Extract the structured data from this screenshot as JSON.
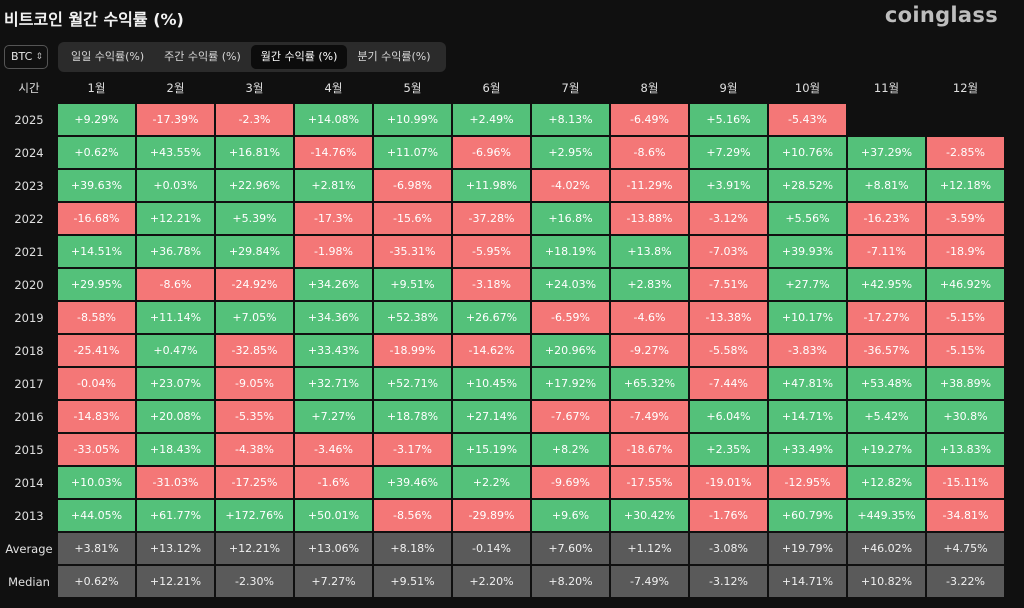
{
  "header": {
    "title": "비트코인 월간 수익률 (%)",
    "logo": "coinglass"
  },
  "toolbar": {
    "coin": "BTC",
    "tabs": [
      {
        "label": "일일 수익률(%)",
        "active": false
      },
      {
        "label": "주간 수익률 (%)",
        "active": false
      },
      {
        "label": "월간 수익률 (%)",
        "active": true
      },
      {
        "label": "분기 수익률(%)",
        "active": false
      }
    ]
  },
  "colors": {
    "positive": "#54c17a",
    "negative": "#f47777",
    "stat": "#5a5a5a",
    "background": "#101010"
  },
  "chart_data": {
    "type": "table",
    "corner_label": "시간",
    "columns": [
      "1월",
      "2월",
      "3월",
      "4월",
      "5월",
      "6월",
      "7월",
      "8월",
      "9월",
      "10월",
      "11월",
      "12월"
    ],
    "rows": [
      {
        "label": "2025",
        "values": [
          "+9.29%",
          "-17.39%",
          "-2.3%",
          "+14.08%",
          "+10.99%",
          "+2.49%",
          "+8.13%",
          "-6.49%",
          "+5.16%",
          "-5.43%",
          null,
          null
        ]
      },
      {
        "label": "2024",
        "values": [
          "+0.62%",
          "+43.55%",
          "+16.81%",
          "-14.76%",
          "+11.07%",
          "-6.96%",
          "+2.95%",
          "-8.6%",
          "+7.29%",
          "+10.76%",
          "+37.29%",
          "-2.85%"
        ]
      },
      {
        "label": "2023",
        "values": [
          "+39.63%",
          "+0.03%",
          "+22.96%",
          "+2.81%",
          "-6.98%",
          "+11.98%",
          "-4.02%",
          "-11.29%",
          "+3.91%",
          "+28.52%",
          "+8.81%",
          "+12.18%"
        ]
      },
      {
        "label": "2022",
        "values": [
          "-16.68%",
          "+12.21%",
          "+5.39%",
          "-17.3%",
          "-15.6%",
          "-37.28%",
          "+16.8%",
          "-13.88%",
          "-3.12%",
          "+5.56%",
          "-16.23%",
          "-3.59%"
        ]
      },
      {
        "label": "2021",
        "values": [
          "+14.51%",
          "+36.78%",
          "+29.84%",
          "-1.98%",
          "-35.31%",
          "-5.95%",
          "+18.19%",
          "+13.8%",
          "-7.03%",
          "+39.93%",
          "-7.11%",
          "-18.9%"
        ]
      },
      {
        "label": "2020",
        "values": [
          "+29.95%",
          "-8.6%",
          "-24.92%",
          "+34.26%",
          "+9.51%",
          "-3.18%",
          "+24.03%",
          "+2.83%",
          "-7.51%",
          "+27.7%",
          "+42.95%",
          "+46.92%"
        ]
      },
      {
        "label": "2019",
        "values": [
          "-8.58%",
          "+11.14%",
          "+7.05%",
          "+34.36%",
          "+52.38%",
          "+26.67%",
          "-6.59%",
          "-4.6%",
          "-13.38%",
          "+10.17%",
          "-17.27%",
          "-5.15%"
        ]
      },
      {
        "label": "2018",
        "values": [
          "-25.41%",
          "+0.47%",
          "-32.85%",
          "+33.43%",
          "-18.99%",
          "-14.62%",
          "+20.96%",
          "-9.27%",
          "-5.58%",
          "-3.83%",
          "-36.57%",
          "-5.15%"
        ]
      },
      {
        "label": "2017",
        "values": [
          "-0.04%",
          "+23.07%",
          "-9.05%",
          "+32.71%",
          "+52.71%",
          "+10.45%",
          "+17.92%",
          "+65.32%",
          "-7.44%",
          "+47.81%",
          "+53.48%",
          "+38.89%"
        ]
      },
      {
        "label": "2016",
        "values": [
          "-14.83%",
          "+20.08%",
          "-5.35%",
          "+7.27%",
          "+18.78%",
          "+27.14%",
          "-7.67%",
          "-7.49%",
          "+6.04%",
          "+14.71%",
          "+5.42%",
          "+30.8%"
        ]
      },
      {
        "label": "2015",
        "values": [
          "-33.05%",
          "+18.43%",
          "-4.38%",
          "-3.46%",
          "-3.17%",
          "+15.19%",
          "+8.2%",
          "-18.67%",
          "+2.35%",
          "+33.49%",
          "+19.27%",
          "+13.83%"
        ]
      },
      {
        "label": "2014",
        "values": [
          "+10.03%",
          "-31.03%",
          "-17.25%",
          "-1.6%",
          "+39.46%",
          "+2.2%",
          "-9.69%",
          "-17.55%",
          "-19.01%",
          "-12.95%",
          "+12.82%",
          "-15.11%"
        ]
      },
      {
        "label": "2013",
        "values": [
          "+44.05%",
          "+61.77%",
          "+172.76%",
          "+50.01%",
          "-8.56%",
          "-29.89%",
          "+9.6%",
          "+30.42%",
          "-1.76%",
          "+60.79%",
          "+449.35%",
          "-34.81%"
        ]
      }
    ],
    "summary_rows": [
      {
        "label": "Average",
        "values": [
          "+3.81%",
          "+13.12%",
          "+12.21%",
          "+13.06%",
          "+8.18%",
          "-0.14%",
          "+7.60%",
          "+1.12%",
          "-3.08%",
          "+19.79%",
          "+46.02%",
          "+4.75%"
        ]
      },
      {
        "label": "Median",
        "values": [
          "+0.62%",
          "+12.21%",
          "-2.30%",
          "+7.27%",
          "+9.51%",
          "+2.20%",
          "+8.20%",
          "-7.49%",
          "-3.12%",
          "+14.71%",
          "+10.82%",
          "-3.22%"
        ]
      }
    ]
  }
}
